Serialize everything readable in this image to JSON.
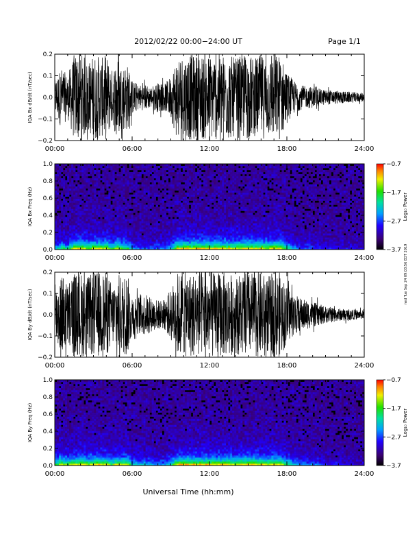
{
  "header": {
    "title": "2012/02/22  00:00−24:00 UT",
    "page": "Page 1/1"
  },
  "xlabel": "Universal Time (hh:mm)",
  "side_note": "ned Tue Sep 24 09:03:56 EDT 2019",
  "chart_data": [
    {
      "type": "line",
      "name": "iqa-bx-dbdt",
      "ylabel": "IQA Bx dB/dt (nT/sec)",
      "xlim": [
        0,
        24
      ],
      "ylim": [
        -0.2,
        0.2
      ],
      "xticks": [
        "00:00",
        "06:00",
        "12:00",
        "18:00",
        "24:00"
      ],
      "yticks": [
        "−0.2",
        "−0.1",
        "0.0",
        "0.1",
        "0.2"
      ],
      "envelope": {
        "hours": [
          0,
          0.5,
          1,
          1.5,
          1.8,
          2.2,
          2.6,
          3.0,
          3.3,
          3.6,
          4,
          4.5,
          4.8,
          5.2,
          5.6,
          6,
          6.5,
          7,
          7.5,
          8,
          8.5,
          9,
          9.5,
          10,
          10.5,
          11,
          11.5,
          12,
          12.5,
          13,
          13.5,
          14,
          14.5,
          15,
          15.5,
          16,
          16.5,
          17,
          17.5,
          18,
          18.5,
          19,
          19.5,
          20,
          20.5,
          21,
          22,
          23,
          24
        ],
        "amp": [
          0.08,
          0.14,
          0.1,
          0.2,
          0.2,
          0.2,
          0.16,
          0.2,
          0.2,
          0.18,
          0.2,
          0.12,
          0.2,
          0.15,
          0.16,
          0.08,
          0.06,
          0.06,
          0.05,
          0.07,
          0.06,
          0.1,
          0.2,
          0.2,
          0.2,
          0.2,
          0.2,
          0.2,
          0.2,
          0.2,
          0.2,
          0.18,
          0.2,
          0.2,
          0.18,
          0.2,
          0.18,
          0.2,
          0.2,
          0.12,
          0.08,
          0.06,
          0.05,
          0.05,
          0.04,
          0.035,
          0.03,
          0.025,
          0.02
        ]
      }
    },
    {
      "type": "heatmap",
      "name": "iqa-bx-spectrogram",
      "ylabel": "IQA Bx Freq (Hz)",
      "xlim": [
        0,
        24
      ],
      "ylim": [
        0,
        1.0
      ],
      "xticks": [
        "00:00",
        "06:00",
        "12:00",
        "18:00",
        "24:00"
      ],
      "yticks": [
        "0.0",
        "0.2",
        "0.4",
        "0.6",
        "0.8",
        "1.0"
      ],
      "colorbar": {
        "label": "Log₁₀ Power",
        "ticks": [
          "−0.7",
          "−1.7",
          "−2.7",
          "−3.7"
        ],
        "range": [
          -3.7,
          -0.7
        ]
      }
    },
    {
      "type": "line",
      "name": "iqa-by-dbdt",
      "ylabel": "IQA By dB/dt (nT/sec)",
      "xlim": [
        0,
        24
      ],
      "ylim": [
        -0.2,
        0.2
      ],
      "xticks": [
        "00:00",
        "06:00",
        "12:00",
        "18:00",
        "24:00"
      ],
      "yticks": [
        "−0.2",
        "−0.1",
        "0.0",
        "0.1",
        "0.2"
      ],
      "envelope": {
        "hours": [
          0,
          0.5,
          1,
          1.5,
          1.8,
          2.2,
          2.6,
          3.0,
          3.3,
          3.6,
          4,
          4.5,
          4.8,
          5.2,
          5.6,
          6,
          6.5,
          7,
          7.5,
          8,
          8.5,
          9,
          9.5,
          10,
          10.5,
          11,
          11.5,
          12,
          12.5,
          13,
          13.5,
          14,
          14.5,
          15,
          15.5,
          16,
          16.5,
          17,
          17.5,
          18,
          18.5,
          19,
          19.5,
          20,
          20.5,
          21,
          22,
          23,
          24
        ],
        "amp": [
          0.12,
          0.2,
          0.15,
          0.2,
          0.2,
          0.2,
          0.18,
          0.2,
          0.2,
          0.2,
          0.2,
          0.14,
          0.2,
          0.18,
          0.2,
          0.1,
          0.09,
          0.1,
          0.08,
          0.07,
          0.07,
          0.12,
          0.2,
          0.2,
          0.2,
          0.2,
          0.2,
          0.2,
          0.2,
          0.2,
          0.2,
          0.18,
          0.2,
          0.2,
          0.2,
          0.2,
          0.18,
          0.2,
          0.2,
          0.14,
          0.1,
          0.08,
          0.07,
          0.06,
          0.05,
          0.04,
          0.03,
          0.025,
          0.02
        ]
      }
    },
    {
      "type": "heatmap",
      "name": "iqa-by-spectrogram",
      "ylabel": "IQA By Freq (Hz)",
      "xlim": [
        0,
        24
      ],
      "ylim": [
        0,
        1.0
      ],
      "xticks": [
        "00:00",
        "06:00",
        "12:00",
        "18:00",
        "24:00"
      ],
      "yticks": [
        "0.0",
        "0.2",
        "0.4",
        "0.6",
        "0.8",
        "1.0"
      ],
      "colorbar": {
        "label": "Log₁₀ Power",
        "ticks": [
          "−0.7",
          "−1.7",
          "−2.7",
          "−3.7"
        ],
        "range": [
          -3.7,
          -0.7
        ]
      }
    }
  ]
}
